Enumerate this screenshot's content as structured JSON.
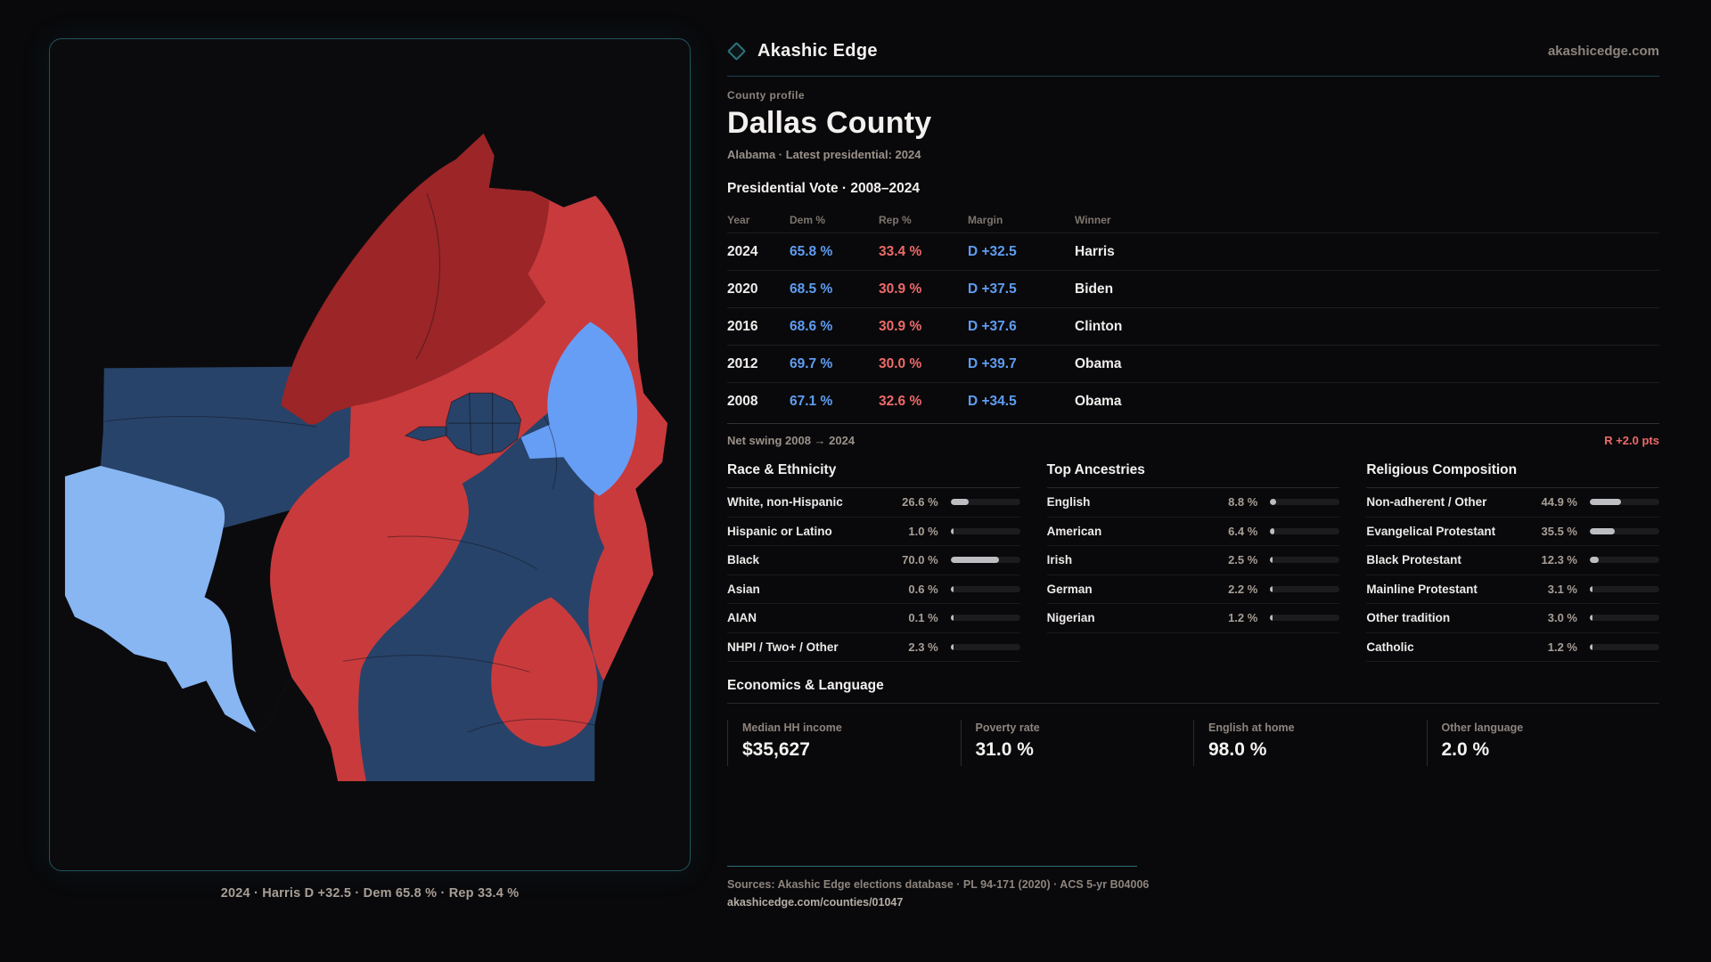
{
  "brand": {
    "name": "Akashic Edge",
    "site": "akashicedge.com",
    "accent_teal": "#2b737e"
  },
  "map_panel": {
    "caption": "2024 · Harris D +32.5 · Dem 65.8 % · Rep 33.4 %",
    "colors": {
      "dem_dark_navy": "#284369",
      "dem_light_blue": "#88b6f3",
      "dem_mid_blue": "#679ef5",
      "rep_bright_red": "#c93a3c",
      "rep_dark_red": "#9b2527"
    }
  },
  "profile": {
    "eyebrow": "County profile",
    "title": "Dallas County",
    "subtitle": "Alabama · Latest presidential: 2024"
  },
  "vote_table": {
    "title": "Presidential Vote · 2008–2024",
    "columns": [
      "Year",
      "Dem %",
      "Rep %",
      "Margin",
      "Winner"
    ],
    "rows": [
      {
        "year": "2024",
        "dem": "65.8 %",
        "rep": "33.4 %",
        "margin": "D +32.5",
        "winner": "Harris"
      },
      {
        "year": "2020",
        "dem": "68.5 %",
        "rep": "30.9 %",
        "margin": "D +37.5",
        "winner": "Biden"
      },
      {
        "year": "2016",
        "dem": "68.6 %",
        "rep": "30.9 %",
        "margin": "D +37.6",
        "winner": "Clinton"
      },
      {
        "year": "2012",
        "dem": "69.7 %",
        "rep": "30.0 %",
        "margin": "D +39.7",
        "winner": "Obama"
      },
      {
        "year": "2008",
        "dem": "67.1 %",
        "rep": "32.6 %",
        "margin": "D +34.5",
        "winner": "Obama"
      }
    ],
    "dem_color": "#5f9df2",
    "rep_color": "#ef6a6a"
  },
  "net_swing": {
    "label": "Net swing 2008 → 2024",
    "value": "R +2.0 pts",
    "value_color": "#ef6a6a"
  },
  "sections": {
    "race": {
      "title": "Race & Ethnicity",
      "items": [
        {
          "label": "White, non-Hispanic",
          "value": "26.6 %",
          "pct": 26.6
        },
        {
          "label": "Hispanic or Latino",
          "value": "1.0 %",
          "pct": 1.0
        },
        {
          "label": "Black",
          "value": "70.0 %",
          "pct": 70.0
        },
        {
          "label": "Asian",
          "value": "0.6 %",
          "pct": 0.6
        },
        {
          "label": "AIAN",
          "value": "0.1 %",
          "pct": 0.1
        },
        {
          "label": "NHPI / Two+ / Other",
          "value": "2.3 %",
          "pct": 2.3
        }
      ]
    },
    "ancestry": {
      "title": "Top Ancestries",
      "items": [
        {
          "label": "English",
          "value": "8.8 %",
          "pct": 8.8
        },
        {
          "label": "American",
          "value": "6.4 %",
          "pct": 6.4
        },
        {
          "label": "Irish",
          "value": "2.5 %",
          "pct": 2.5
        },
        {
          "label": "German",
          "value": "2.2 %",
          "pct": 2.2
        },
        {
          "label": "Nigerian",
          "value": "1.2 %",
          "pct": 1.2
        }
      ]
    },
    "religion": {
      "title": "Religious Composition",
      "items": [
        {
          "label": "Non-adherent / Other",
          "value": "44.9 %",
          "pct": 44.9
        },
        {
          "label": "Evangelical Protestant",
          "value": "35.5 %",
          "pct": 35.5
        },
        {
          "label": "Black Protestant",
          "value": "12.3 %",
          "pct": 12.3
        },
        {
          "label": "Mainline Protestant",
          "value": "3.1 %",
          "pct": 3.1
        },
        {
          "label": "Other tradition",
          "value": "3.0 %",
          "pct": 3.0
        },
        {
          "label": "Catholic",
          "value": "1.2 %",
          "pct": 1.2
        }
      ]
    }
  },
  "economics": {
    "title": "Economics & Language",
    "stats": [
      {
        "label": "Median HH income",
        "value": "$35,627"
      },
      {
        "label": "Poverty rate",
        "value": "31.0 %"
      },
      {
        "label": "English at home",
        "value": "98.0 %"
      },
      {
        "label": "Other language",
        "value": "2.0 %"
      }
    ]
  },
  "footer": {
    "sources": "Sources: Akashic Edge elections database · PL 94-171 (2020) · ACS 5-yr B04006",
    "permalink": "akashicedge.com/counties/01047"
  }
}
